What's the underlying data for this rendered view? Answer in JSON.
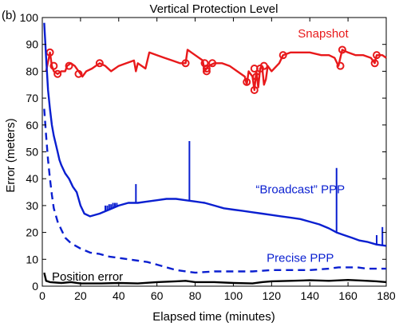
{
  "panel_label": "(b)",
  "chart_data": {
    "type": "line",
    "title": "Vertical Protection Level",
    "xlabel": "Elapsed time (minutes)",
    "ylabel": "Error (meters)",
    "xlim": [
      0,
      180
    ],
    "ylim": [
      0,
      100
    ],
    "xticks": [
      0,
      20,
      40,
      60,
      80,
      100,
      120,
      140,
      160,
      180
    ],
    "yticks": [
      0,
      10,
      20,
      30,
      40,
      50,
      60,
      70,
      80,
      90,
      100
    ],
    "grid": false,
    "annotations": [
      {
        "text": "Snapshot",
        "color": "#e8191b",
        "anchor": [
          147,
          94
        ]
      },
      {
        "text": "“Broadcast” PPP",
        "color": "#0a1fd0",
        "anchor": [
          135,
          36
        ]
      },
      {
        "text": "Precise PPP",
        "color": "#0a1fd0",
        "anchor": [
          135,
          10.5
        ]
      },
      {
        "text": "Position error",
        "color": "#000000",
        "anchor": [
          5,
          3.5
        ]
      }
    ],
    "series": [
      {
        "name": "Snapshot",
        "color": "#e8191b",
        "style": "solid-with-markers",
        "points": [
          [
            2,
            80
          ],
          [
            4,
            87
          ],
          [
            5,
            82
          ],
          [
            6,
            80
          ],
          [
            8,
            79
          ],
          [
            10,
            80
          ],
          [
            12,
            80
          ],
          [
            13,
            82
          ],
          [
            15,
            83
          ],
          [
            17,
            82
          ],
          [
            19,
            80
          ],
          [
            21,
            78
          ],
          [
            23,
            80
          ],
          [
            26,
            81
          ],
          [
            30,
            83
          ],
          [
            33,
            82
          ],
          [
            36,
            80
          ],
          [
            40,
            82
          ],
          [
            44,
            83
          ],
          [
            48,
            84
          ],
          [
            49,
            80
          ],
          [
            50,
            83
          ],
          [
            54,
            81
          ],
          [
            56,
            87
          ],
          [
            60,
            86
          ],
          [
            64,
            85
          ],
          [
            68,
            84
          ],
          [
            72,
            83
          ],
          [
            75,
            83
          ],
          [
            76,
            88
          ],
          [
            78,
            87
          ],
          [
            80,
            86
          ],
          [
            84,
            84
          ],
          [
            85,
            80
          ],
          [
            87,
            82
          ],
          [
            90,
            83
          ],
          [
            94,
            83
          ],
          [
            98,
            82
          ],
          [
            102,
            80
          ],
          [
            106,
            78
          ],
          [
            107,
            75
          ],
          [
            108,
            80
          ],
          [
            110,
            78
          ],
          [
            111,
            73
          ],
          [
            112,
            80
          ],
          [
            113,
            74
          ],
          [
            114,
            81
          ],
          [
            115,
            82
          ],
          [
            116,
            75
          ],
          [
            117,
            77
          ],
          [
            118,
            82
          ],
          [
            120,
            80
          ],
          [
            124,
            83
          ],
          [
            126,
            86
          ],
          [
            130,
            87
          ],
          [
            136,
            87
          ],
          [
            140,
            87
          ],
          [
            146,
            86
          ],
          [
            150,
            86
          ],
          [
            153,
            85
          ],
          [
            155,
            82
          ],
          [
            157,
            88
          ],
          [
            160,
            87
          ],
          [
            164,
            86
          ],
          [
            168,
            86
          ],
          [
            172,
            85
          ],
          [
            174,
            83
          ],
          [
            175,
            86
          ],
          [
            178,
            86
          ],
          [
            180,
            85
          ]
        ],
        "markers": [
          [
            4,
            87
          ],
          [
            6,
            82
          ],
          [
            8,
            79
          ],
          [
            14,
            82
          ],
          [
            19,
            79
          ],
          [
            30,
            83
          ],
          [
            75,
            83
          ],
          [
            85,
            83
          ],
          [
            86,
            81
          ],
          [
            86,
            80
          ],
          [
            89,
            83
          ],
          [
            107,
            76
          ],
          [
            111,
            81
          ],
          [
            111,
            73
          ],
          [
            112,
            78
          ],
          [
            114,
            81
          ],
          [
            116,
            82
          ],
          [
            126,
            86
          ],
          [
            156,
            82
          ],
          [
            157,
            88
          ],
          [
            174,
            83
          ],
          [
            175,
            86
          ]
        ]
      },
      {
        "name": "“Broadcast” PPP",
        "color": "#0a1fd0",
        "style": "solid",
        "points": [
          [
            1,
            98
          ],
          [
            2,
            85
          ],
          [
            3,
            73
          ],
          [
            4,
            66
          ],
          [
            5,
            60
          ],
          [
            6,
            56
          ],
          [
            7,
            53
          ],
          [
            8,
            50
          ],
          [
            9,
            47
          ],
          [
            10,
            45
          ],
          [
            12,
            42
          ],
          [
            14,
            40
          ],
          [
            16,
            37
          ],
          [
            18,
            35
          ],
          [
            20,
            30
          ],
          [
            22,
            27
          ],
          [
            25,
            26
          ],
          [
            30,
            27
          ],
          [
            35,
            28.5
          ],
          [
            40,
            30
          ],
          [
            45,
            31
          ],
          [
            50,
            31
          ],
          [
            55,
            31.5
          ],
          [
            60,
            32
          ],
          [
            65,
            32.5
          ],
          [
            70,
            32.5
          ],
          [
            75,
            32
          ],
          [
            80,
            31.5
          ],
          [
            85,
            31
          ],
          [
            90,
            30
          ],
          [
            95,
            29
          ],
          [
            100,
            28.5
          ],
          [
            105,
            28
          ],
          [
            110,
            27.5
          ],
          [
            115,
            27
          ],
          [
            120,
            26.5
          ],
          [
            125,
            26
          ],
          [
            130,
            25.5
          ],
          [
            135,
            25
          ],
          [
            140,
            24
          ],
          [
            145,
            23
          ],
          [
            150,
            21.5
          ],
          [
            154,
            20
          ],
          [
            158,
            19
          ],
          [
            162,
            18
          ],
          [
            166,
            17
          ],
          [
            170,
            16.5
          ],
          [
            175,
            15.5
          ],
          [
            180,
            15
          ]
        ],
        "spikes": [
          [
            49,
            38
          ],
          [
            77,
            54
          ],
          [
            154,
            44
          ],
          [
            175,
            19
          ],
          [
            178,
            22
          ],
          [
            33,
            30
          ],
          [
            34,
            30
          ],
          [
            35,
            30.5
          ],
          [
            36,
            30.5
          ],
          [
            37,
            31
          ],
          [
            38,
            31
          ],
          [
            39,
            31
          ]
        ]
      },
      {
        "name": "Precise PPP",
        "color": "#0a1fd0",
        "style": "dashed",
        "points": [
          [
            1,
            66
          ],
          [
            2,
            56
          ],
          [
            3,
            47
          ],
          [
            4,
            40
          ],
          [
            5,
            34
          ],
          [
            6,
            29
          ],
          [
            8,
            24
          ],
          [
            10,
            21
          ],
          [
            12,
            18
          ],
          [
            15,
            16
          ],
          [
            20,
            14
          ],
          [
            25,
            12.5
          ],
          [
            30,
            12
          ],
          [
            35,
            11
          ],
          [
            40,
            10.5
          ],
          [
            45,
            10
          ],
          [
            50,
            9.5
          ],
          [
            55,
            9
          ],
          [
            60,
            8
          ],
          [
            65,
            7
          ],
          [
            70,
            6
          ],
          [
            75,
            5.5
          ],
          [
            80,
            5
          ],
          [
            90,
            5.5
          ],
          [
            100,
            5.5
          ],
          [
            110,
            5.5
          ],
          [
            120,
            6
          ],
          [
            130,
            6
          ],
          [
            140,
            6
          ],
          [
            150,
            6.5
          ],
          [
            155,
            7
          ],
          [
            160,
            7
          ],
          [
            165,
            7
          ],
          [
            170,
            6.5
          ],
          [
            175,
            6.5
          ],
          [
            180,
            6.5
          ]
        ]
      },
      {
        "name": "Position error",
        "color": "#000000",
        "style": "solid",
        "points": [
          [
            1,
            5
          ],
          [
            2,
            2
          ],
          [
            4,
            1.5
          ],
          [
            10,
            1.2
          ],
          [
            15,
            1.5
          ],
          [
            20,
            1
          ],
          [
            30,
            1
          ],
          [
            40,
            1.2
          ],
          [
            50,
            1
          ],
          [
            60,
            1.5
          ],
          [
            70,
            1.8
          ],
          [
            75,
            2
          ],
          [
            80,
            1.5
          ],
          [
            90,
            1.5
          ],
          [
            100,
            1.2
          ],
          [
            110,
            1
          ],
          [
            115,
            1.5
          ],
          [
            120,
            1.8
          ],
          [
            130,
            2
          ],
          [
            140,
            2.2
          ],
          [
            150,
            2
          ],
          [
            160,
            2.3
          ],
          [
            170,
            2
          ],
          [
            175,
            1.8
          ],
          [
            180,
            1.5
          ]
        ]
      }
    ]
  }
}
